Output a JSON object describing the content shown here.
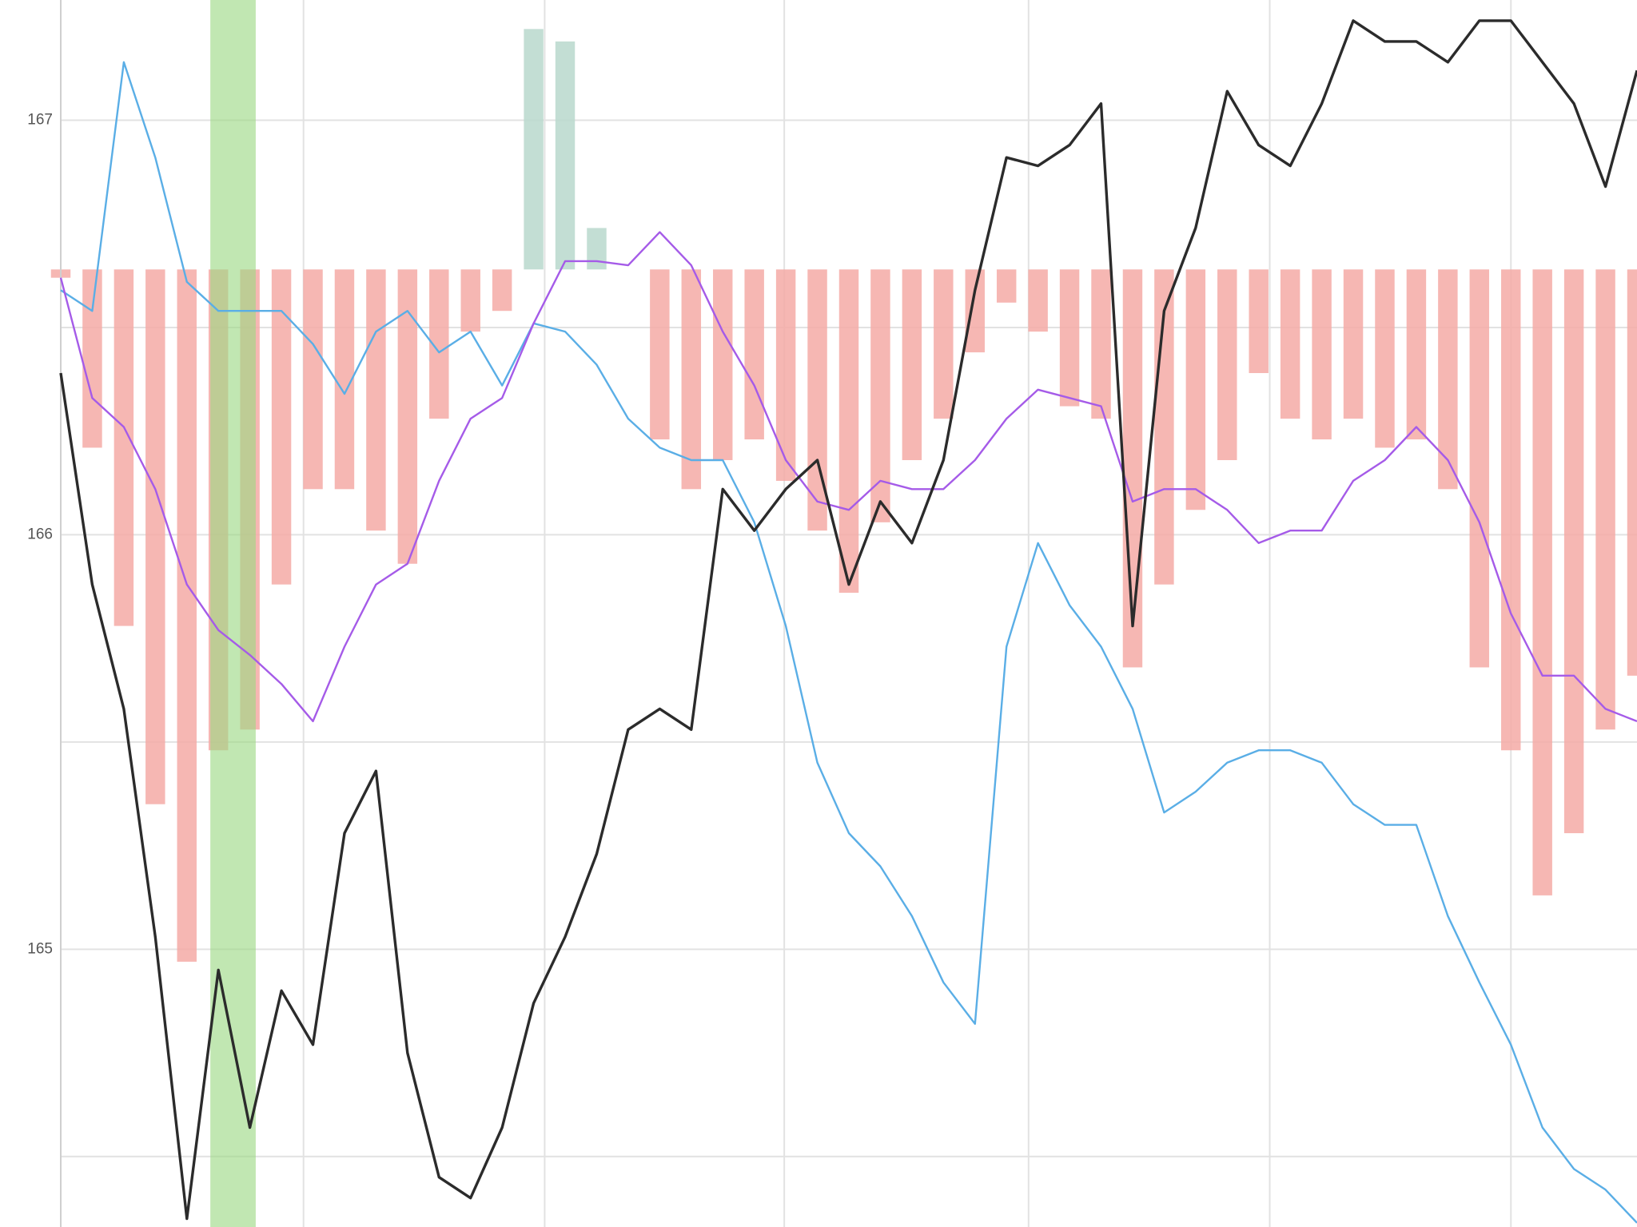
{
  "chart_data": {
    "type": "line",
    "x": [
      0,
      2,
      4,
      6,
      8,
      10,
      12,
      14,
      16,
      18,
      20,
      22,
      24,
      26,
      28,
      30,
      32,
      34,
      36,
      38,
      40,
      42,
      44,
      46,
      48,
      50,
      52,
      54,
      56,
      58,
      60,
      62,
      64,
      66,
      68,
      70,
      72,
      74,
      76,
      78,
      80,
      82,
      84,
      86,
      88,
      90,
      92,
      94,
      96,
      98,
      100
    ],
    "xlim": [
      0,
      100
    ],
    "xticks": [
      0,
      15.4,
      30.7,
      45.9,
      61.4,
      76.7,
      92
    ],
    "ylim": [
      164.33,
      167.29
    ],
    "yticks": [
      165,
      166,
      167
    ],
    "minor_yticks": [
      164.5,
      165.5,
      166.5
    ],
    "grid": true,
    "highlight": {
      "x": [
        9.49,
        12.37
      ],
      "color": "#9bd883"
    },
    "histogram": {
      "base": 166.64,
      "color_above": "#b9d8cc",
      "color_below": "#f4aaa6",
      "values": [
        166.62,
        166.21,
        165.78,
        165.35,
        164.97,
        165.48,
        165.53,
        165.88,
        166.11,
        166.11,
        166.01,
        165.93,
        166.28,
        166.49,
        166.54,
        167.22,
        167.19,
        166.74,
        166.64,
        166.23,
        166.11,
        166.18,
        166.23,
        166.13,
        166.01,
        165.86,
        166.03,
        166.18,
        166.28,
        166.44,
        166.56,
        166.49,
        166.31,
        166.28,
        165.68,
        165.88,
        166.06,
        166.18,
        166.39,
        166.28,
        166.23,
        166.28,
        166.21,
        166.23,
        166.11,
        165.68,
        165.48,
        165.13,
        165.28,
        165.53,
        165.66
      ]
    },
    "series": [
      {
        "color": "#5aaee6",
        "values": [
          166.59,
          166.54,
          167.14,
          166.91,
          166.61,
          166.54,
          166.54,
          166.54,
          166.46,
          166.34,
          166.49,
          166.54,
          166.44,
          166.49,
          166.36,
          166.51,
          166.49,
          166.41,
          166.28,
          166.21,
          166.18,
          166.18,
          166.03,
          165.78,
          165.45,
          165.28,
          165.2,
          165.08,
          164.92,
          164.82,
          165.73,
          165.98,
          165.83,
          165.73,
          165.58,
          165.33,
          165.38,
          165.45,
          165.48,
          165.48,
          165.45,
          165.35,
          165.3,
          165.3,
          165.08,
          164.92,
          164.77,
          164.57,
          164.47,
          164.42,
          164.34
        ]
      },
      {
        "color": "#a55be8",
        "values": [
          166.62,
          166.33,
          166.26,
          166.11,
          165.88,
          165.77,
          165.71,
          165.64,
          165.55,
          165.73,
          165.88,
          165.93,
          166.13,
          166.28,
          166.33,
          166.51,
          166.66,
          166.66,
          166.65,
          166.73,
          166.65,
          166.49,
          166.36,
          166.18,
          166.08,
          166.06,
          166.13,
          166.11,
          166.11,
          166.18,
          166.28,
          166.35,
          166.33,
          166.31,
          166.08,
          166.11,
          166.11,
          166.06,
          165.98,
          166.01,
          166.01,
          166.13,
          166.18,
          166.26,
          166.18,
          166.03,
          165.81,
          165.66,
          165.66,
          165.58,
          165.55
        ]
      },
      {
        "color": "#2b2b2b",
        "values": [
          166.39,
          165.88,
          165.58,
          165.03,
          164.35,
          164.95,
          164.57,
          164.9,
          164.77,
          165.28,
          165.43,
          164.75,
          164.45,
          164.4,
          164.57,
          164.87,
          165.03,
          165.23,
          165.53,
          165.58,
          165.53,
          166.11,
          166.01,
          166.11,
          166.18,
          165.88,
          166.08,
          165.98,
          166.18,
          166.59,
          166.91,
          166.89,
          166.94,
          167.04,
          165.78,
          166.54,
          166.74,
          167.07,
          166.94,
          166.89,
          167.04,
          167.24,
          167.19,
          167.19,
          167.14,
          167.24,
          167.24,
          167.14,
          167.04,
          166.84,
          167.12
        ]
      }
    ]
  }
}
